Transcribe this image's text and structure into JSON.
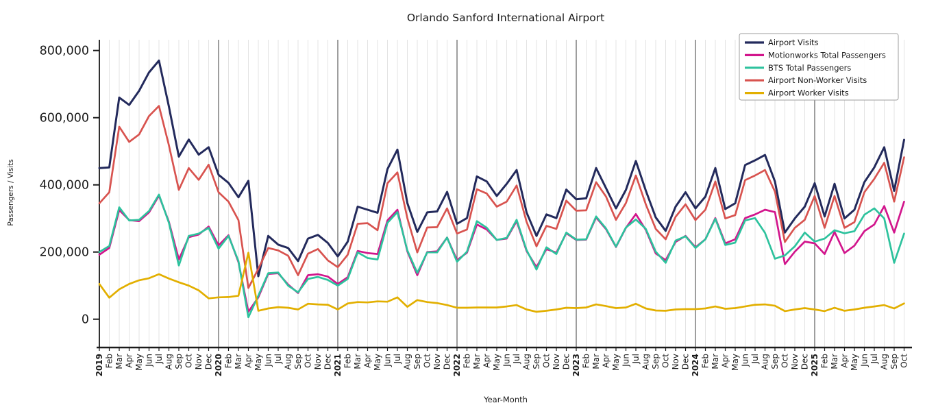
{
  "title": "Orlando Sanford International Airport",
  "axes": {
    "xlabel": "Year-Month",
    "ylabel": "Passengers / Visits",
    "ytick_labels": [
      "0",
      "200,000",
      "400,000",
      "600,000",
      "800,000"
    ],
    "ytick_values": [
      0,
      200000,
      400000,
      600000,
      800000
    ]
  },
  "colors": {
    "axis": "#1a1a1a",
    "grid_minor": "#dcdcdc",
    "grid_year": "#3c3c3c",
    "legend_border": "#9e9e9e",
    "background": "#ffffff"
  },
  "legend": {
    "position": "upper right",
    "entries": [
      "Airport Visits",
      "Motionworks Total Passengers",
      "BTS Total Passengers",
      "Airport Non-Worker Visits",
      "Airport Worker Visits"
    ]
  },
  "chart_data": {
    "type": "line",
    "title": "Orlando Sanford International Airport",
    "xlabel": "Year-Month",
    "ylabel": "Passengers / Visits",
    "ylim": [
      -85000,
      840000
    ],
    "grid": "vertical gridline per month, darker line at each January",
    "legend_position": "upper right",
    "x": [
      "2019",
      "Feb",
      "Mar",
      "Apr",
      "May",
      "Jun",
      "Jul",
      "Aug",
      "Sep",
      "Oct",
      "Nov",
      "Dec",
      "2020",
      "Feb",
      "Mar",
      "Apr",
      "May",
      "Jun",
      "Jul",
      "Aug",
      "Sep",
      "Oct",
      "Nov",
      "Dec",
      "2021",
      "Feb",
      "Mar",
      "Apr",
      "May",
      "Jun",
      "Jul",
      "Aug",
      "Sep",
      "Oct",
      "Nov",
      "Dec",
      "2022",
      "Feb",
      "Mar",
      "Apr",
      "May",
      "Jun",
      "Jul",
      "Aug",
      "Sep",
      "Oct",
      "Nov",
      "Dec",
      "2023",
      "Feb",
      "Mar",
      "Apr",
      "May",
      "Jun",
      "Jul",
      "Aug",
      "Sep",
      "Oct",
      "Nov",
      "Dec",
      "2024",
      "Feb",
      "Mar",
      "Apr",
      "May",
      "Jun",
      "Jul",
      "Aug",
      "Sep",
      "Oct",
      "Nov",
      "Dec",
      "2025",
      "Feb",
      "Mar",
      "Apr",
      "May",
      "Jun",
      "Jul",
      "Aug",
      "Sep",
      "Oct"
    ],
    "year_tick_indices": [
      0,
      12,
      24,
      36,
      48,
      60,
      72
    ],
    "series": [
      {
        "name": "Airport Visits",
        "color": "#232a5c",
        "values": [
          450000,
          452000,
          660000,
          638000,
          680000,
          735000,
          770000,
          633000,
          484000,
          535000,
          490000,
          512000,
          430000,
          406000,
          363000,
          412000,
          128000,
          248000,
          222000,
          212000,
          173000,
          240000,
          251000,
          227000,
          187000,
          231000,
          335000,
          326000,
          317000,
          447000,
          505000,
          346000,
          260000,
          318000,
          321000,
          379000,
          284000,
          301000,
          425000,
          410000,
          367000,
          403000,
          444000,
          318000,
          248000,
          312000,
          301000,
          386000,
          357000,
          360000,
          450000,
          390000,
          330000,
          385000,
          471000,
          383000,
          303000,
          263000,
          335000,
          378000,
          330000,
          365000,
          450000,
          328000,
          345000,
          459000,
          473000,
          489000,
          410000,
          258000,
          300000,
          335000,
          405000,
          306000,
          403000,
          300000,
          326000,
          408000,
          452000,
          512000,
          382000,
          534000
        ]
      },
      {
        "name": "Motionworks Total Passengers",
        "color": "#d2158c",
        "values": [
          192000,
          212000,
          325000,
          295000,
          292000,
          318000,
          368000,
          290000,
          178000,
          244000,
          252000,
          276000,
          220000,
          250000,
          170000,
          22000,
          65000,
          135000,
          137000,
          103000,
          78000,
          131000,
          134000,
          127000,
          105000,
          125000,
          203000,
          197000,
          194000,
          294000,
          326000,
          202000,
          131000,
          200000,
          202000,
          243000,
          176000,
          198000,
          282000,
          267000,
          236000,
          240000,
          292000,
          203000,
          155000,
          209000,
          198000,
          256000,
          236000,
          237000,
          303000,
          268000,
          215000,
          272000,
          313000,
          266000,
          196000,
          176000,
          230000,
          248000,
          214000,
          238000,
          301000,
          226000,
          238000,
          301000,
          312000,
          326000,
          319000,
          164000,
          201000,
          231000,
          226000,
          194000,
          260000,
          197000,
          219000,
          262000,
          282000,
          337000,
          258000,
          350000
        ]
      },
      {
        "name": "BTS Total Passengers",
        "color": "#2dc29d",
        "values": [
          200000,
          218000,
          333000,
          294000,
          296000,
          322000,
          371000,
          287000,
          160000,
          248000,
          255000,
          272000,
          210000,
          248000,
          173000,
          6000,
          70000,
          137000,
          139000,
          100000,
          80000,
          120000,
          126000,
          117000,
          100000,
          120000,
          199000,
          182000,
          178000,
          287000,
          319000,
          205000,
          138000,
          199000,
          199000,
          243000,
          171000,
          201000,
          292000,
          272000,
          236000,
          242000,
          296000,
          206000,
          148000,
          214000,
          194000,
          258000,
          237000,
          238000,
          306000,
          270000,
          216000,
          273000,
          297000,
          269000,
          201000,
          168000,
          234000,
          247000,
          212000,
          238000,
          299000,
          221000,
          228000,
          294000,
          301000,
          257000,
          180000,
          190000,
          217000,
          258000,
          231000,
          240000,
          265000,
          256000,
          262000,
          311000,
          330000,
          300000,
          168000,
          255000
        ]
      },
      {
        "name": "Airport Non-Worker Visits",
        "color": "#d8534f",
        "values": [
          345000,
          378000,
          573000,
          528000,
          550000,
          605000,
          635000,
          518000,
          385000,
          450000,
          415000,
          460000,
          378000,
          350000,
          295000,
          93000,
          150000,
          212000,
          205000,
          189000,
          131000,
          195000,
          209000,
          175000,
          155000,
          192000,
          284000,
          286000,
          265000,
          405000,
          437000,
          301000,
          199000,
          273000,
          274000,
          330000,
          255000,
          267000,
          387000,
          374000,
          335000,
          350000,
          398000,
          290000,
          217000,
          278000,
          269000,
          353000,
          323000,
          324000,
          408000,
          365000,
          296000,
          346000,
          428000,
          342000,
          269000,
          238000,
          305000,
          342000,
          295000,
          326000,
          410000,
          300000,
          310000,
          414000,
          428000,
          444000,
          380000,
          230000,
          272000,
          296000,
          367000,
          272000,
          367000,
          272000,
          289000,
          378000,
          418000,
          466000,
          350000,
          482000
        ]
      },
      {
        "name": "Airport Worker Visits",
        "color": "#e2af00",
        "values": [
          105000,
          64000,
          89000,
          105000,
          116000,
          122000,
          134000,
          121000,
          110000,
          100000,
          86000,
          62000,
          65000,
          66000,
          70000,
          198000,
          25000,
          32000,
          36000,
          34000,
          29000,
          46000,
          44000,
          43000,
          29000,
          47000,
          51000,
          50000,
          53000,
          52000,
          65000,
          37000,
          57000,
          51000,
          48000,
          42000,
          34000,
          34000,
          35000,
          35000,
          35000,
          38000,
          42000,
          29000,
          22000,
          25000,
          29000,
          34000,
          33000,
          35000,
          44000,
          39000,
          33000,
          35000,
          46000,
          32000,
          26000,
          25000,
          29000,
          30000,
          30000,
          32000,
          38000,
          31000,
          33000,
          38000,
          43000,
          44000,
          40000,
          24000,
          29000,
          33000,
          29000,
          24000,
          34000,
          25000,
          29000,
          34000,
          38000,
          42000,
          32000,
          47000
        ]
      }
    ]
  }
}
